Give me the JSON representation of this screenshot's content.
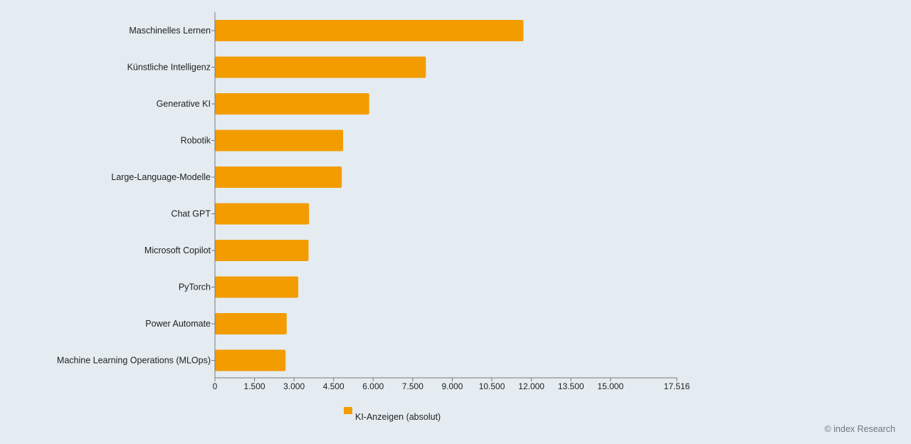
{
  "chart_data": {
    "type": "bar",
    "orientation": "horizontal",
    "categories": [
      "Maschinelles Lernen",
      "Künstliche Intelligenz",
      "Generative KI",
      "Robotik",
      "Large-Language-Modelle",
      "Chat GPT",
      "Microsoft Copilot",
      "PyTorch",
      "Power Automate",
      "Machine Learning Operations (MLOps)"
    ],
    "series": [
      {
        "name": "KI-Anzeigen (absolut)",
        "color": "#f39c00",
        "values": [
          11700,
          8000,
          5850,
          4860,
          4810,
          3570,
          3550,
          3160,
          2720,
          2680
        ]
      }
    ],
    "xlim": [
      0,
      17516
    ],
    "xticks": [
      0,
      1500,
      3000,
      4500,
      6000,
      7500,
      9000,
      10500,
      12000,
      13500,
      15000,
      17516
    ],
    "xtick_labels": [
      "0",
      "1.500",
      "3.000",
      "4.500",
      "6.000",
      "7.500",
      "9.000",
      "10.500",
      "12.000",
      "13.500",
      "15.000",
      "17.516"
    ],
    "legend_position": "bottom",
    "grid": false
  },
  "legend": {
    "label": "KI-Anzeigen (absolut)"
  },
  "credit": "© index Research"
}
